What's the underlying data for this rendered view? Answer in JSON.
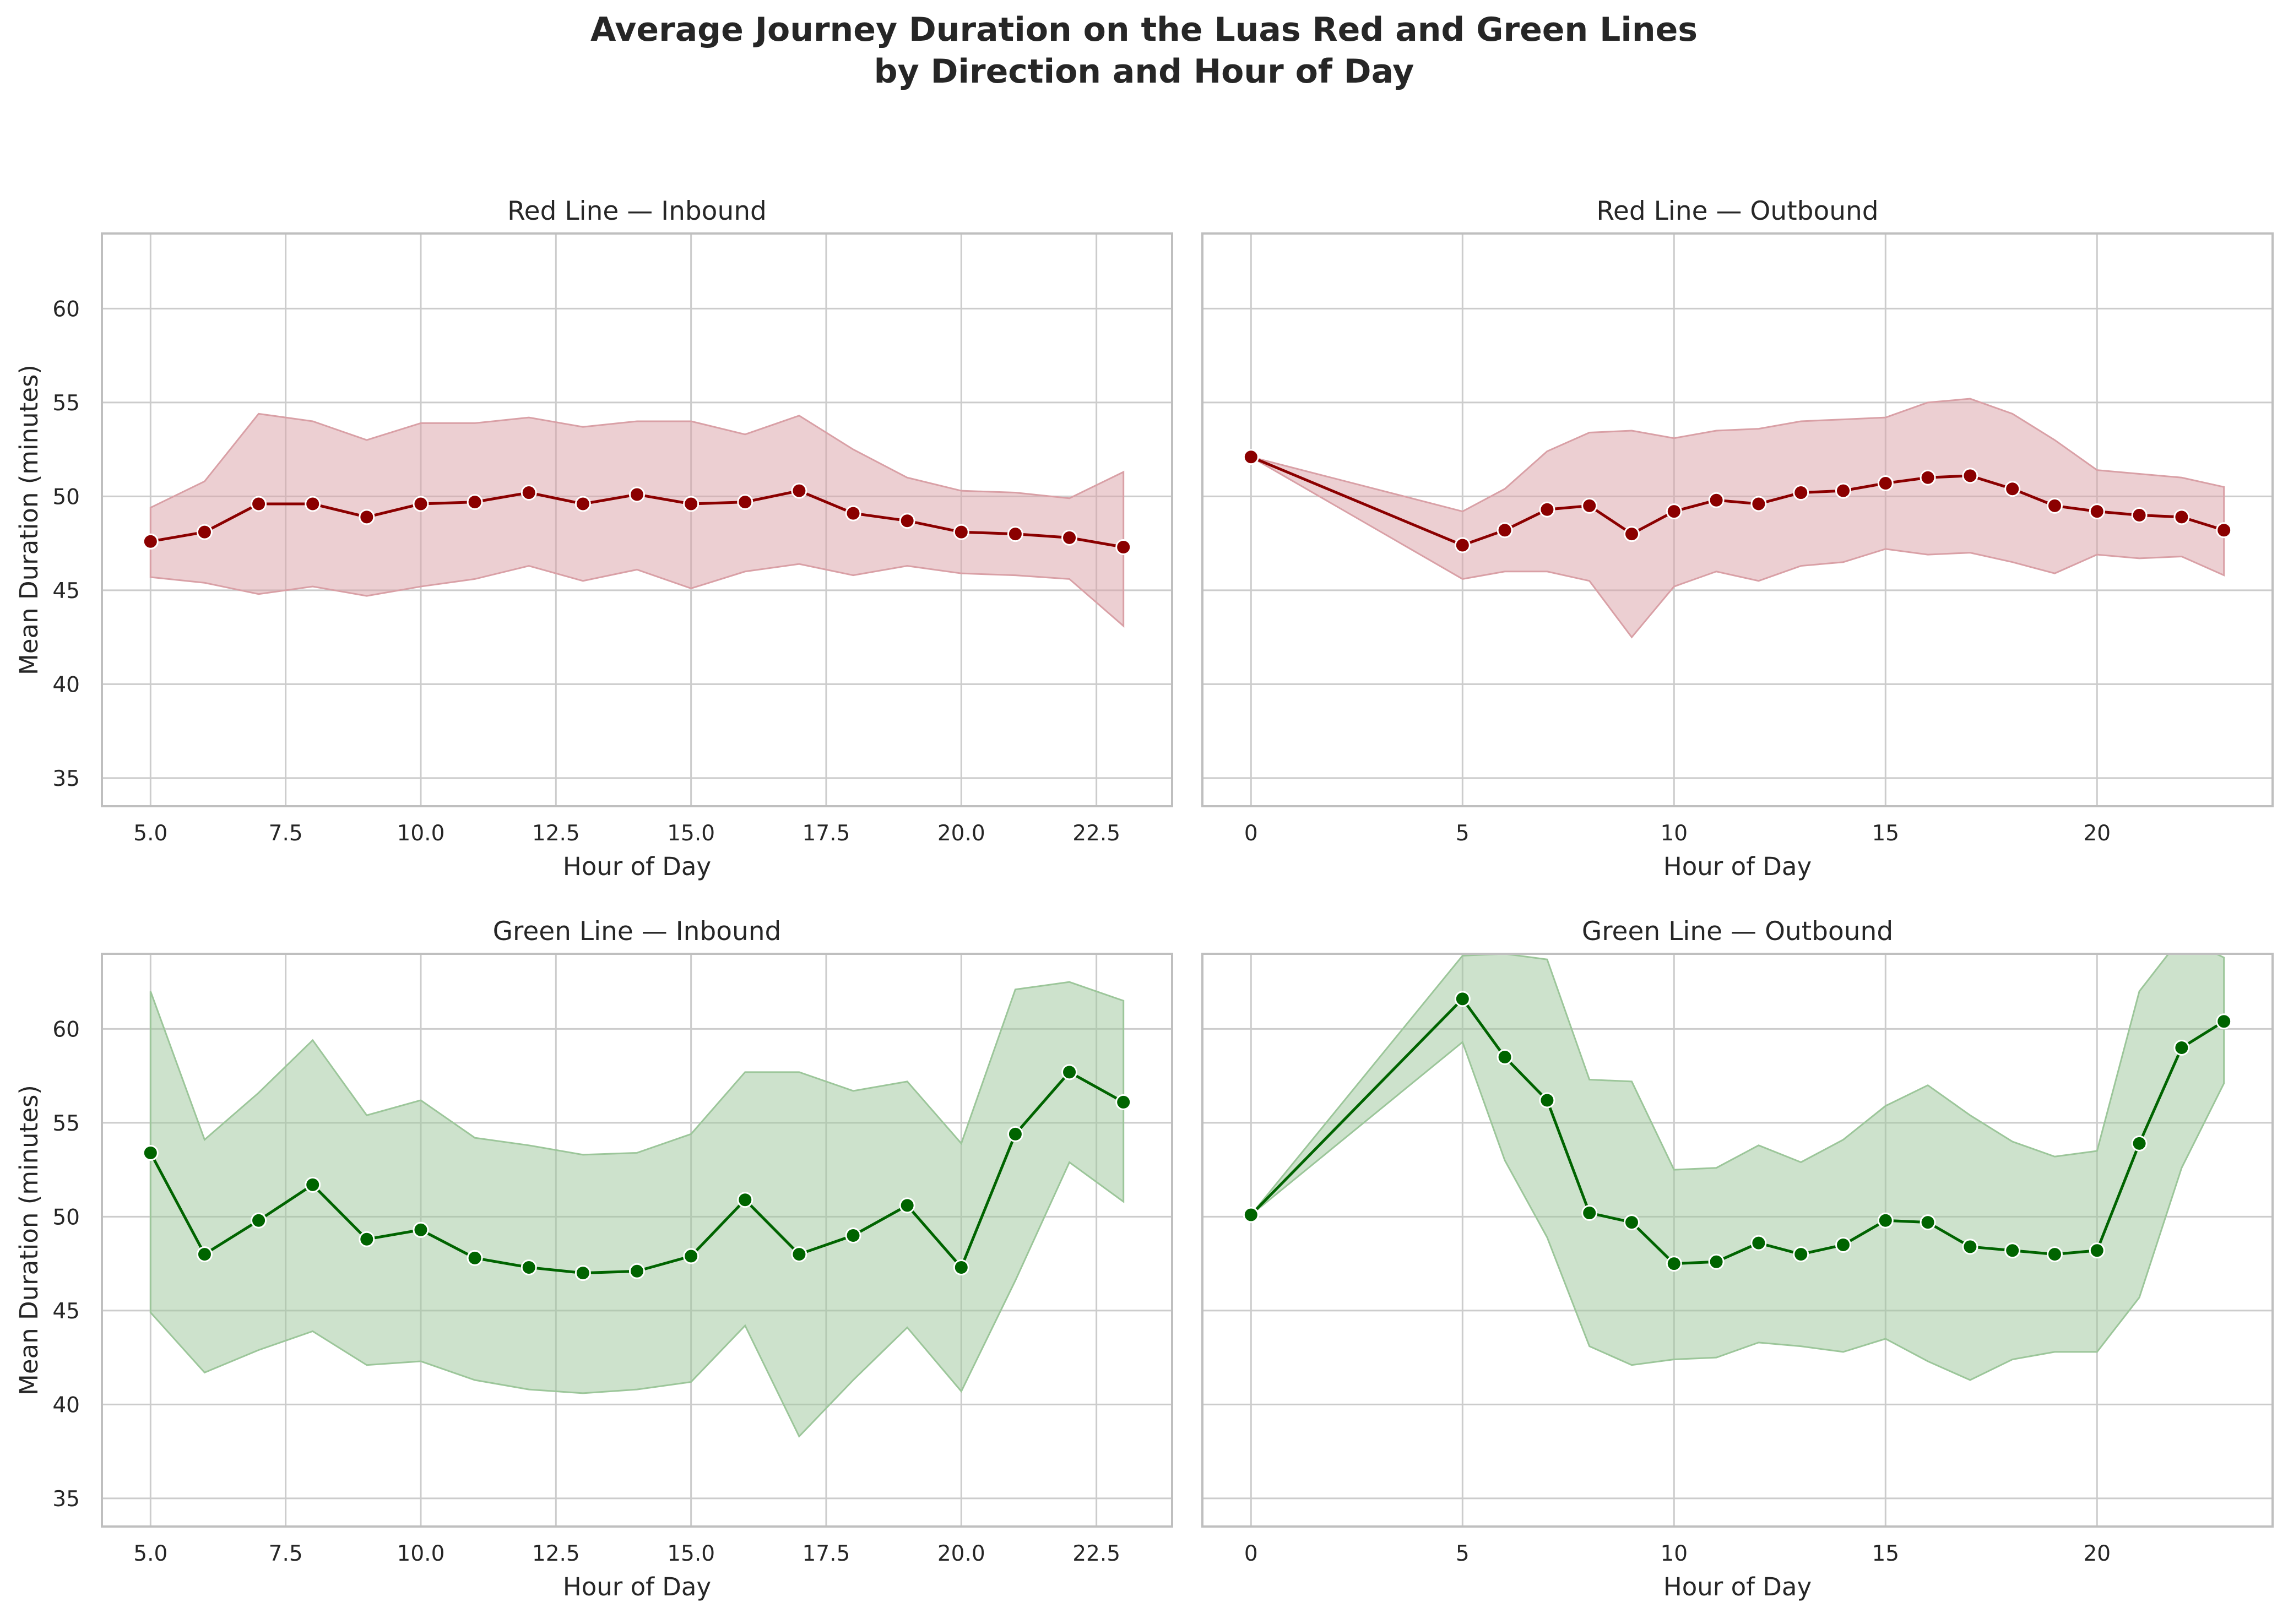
{
  "figure": {
    "title_line1": "Average Journey Duration on the Luas Red and Green Lines",
    "title_line2": "by Direction and Hour of Day"
  },
  "colors": {
    "red_line": "#8b0000",
    "red_band": "#d9a0a6",
    "green_line": "#006400",
    "green_band": "#9cc69a",
    "grid": "#cccccc",
    "frame": "#bfbfbf"
  },
  "chart_data": [
    {
      "type": "line",
      "title": "Red Line — Inbound",
      "xlabel": "Hour of Day",
      "ylabel": "Mean Duration (minutes)",
      "color": "#8b0000",
      "xlim": [
        4.1,
        23.9
      ],
      "ylim": [
        33.5,
        64
      ],
      "xticks": [
        5,
        7.5,
        10,
        12.5,
        15,
        17.5,
        20,
        22.5
      ],
      "xticklabels": [
        "5.0",
        "7.5",
        "10.0",
        "12.5",
        "15.0",
        "17.5",
        "20.0",
        "22.5"
      ],
      "yticks": [
        35,
        40,
        45,
        50,
        55,
        60
      ],
      "grid": true,
      "series": [
        {
          "x": [
            5,
            6,
            7,
            8,
            9,
            10,
            11,
            12,
            13,
            14,
            15,
            16,
            17,
            18,
            19,
            20,
            21,
            22,
            23
          ],
          "y": [
            47.6,
            48.1,
            49.6,
            49.6,
            48.9,
            49.6,
            49.7,
            50.2,
            49.6,
            50.1,
            49.6,
            49.7,
            50.3,
            49.1,
            48.7,
            48.1,
            48.0,
            47.8,
            47.3
          ],
          "lower": [
            45.7,
            45.4,
            44.8,
            45.2,
            44.7,
            45.2,
            45.6,
            46.3,
            45.5,
            46.1,
            45.1,
            46.0,
            46.4,
            45.8,
            46.3,
            45.9,
            45.8,
            45.6,
            43.1
          ],
          "upper": [
            49.4,
            50.8,
            54.4,
            54.0,
            53.0,
            53.9,
            53.9,
            54.2,
            53.7,
            54.0,
            54.0,
            53.3,
            54.3,
            52.5,
            51.0,
            50.3,
            50.2,
            49.9,
            51.3
          ]
        }
      ]
    },
    {
      "type": "line",
      "title": "Red Line — Outbound",
      "xlabel": "Hour of Day",
      "ylabel": "",
      "color": "#8b0000",
      "xlim": [
        -1.15,
        24.15
      ],
      "ylim": [
        33.5,
        64
      ],
      "xticks": [
        0,
        5,
        10,
        15,
        20
      ],
      "xticklabels": [
        "0",
        "5",
        "10",
        "15",
        "20"
      ],
      "yticks": [
        35,
        40,
        45,
        50,
        55,
        60
      ],
      "grid": true,
      "series": [
        {
          "x": [
            0,
            5,
            6,
            7,
            8,
            9,
            10,
            11,
            12,
            13,
            14,
            15,
            16,
            17,
            18,
            19,
            20,
            21,
            22,
            23
          ],
          "y": [
            52.1,
            47.4,
            48.2,
            49.3,
            49.5,
            48.0,
            49.2,
            49.8,
            49.6,
            50.2,
            50.3,
            50.7,
            51.0,
            51.1,
            50.4,
            49.5,
            49.2,
            49.0,
            48.9,
            48.2
          ],
          "lower": [
            52.1,
            45.6,
            46.0,
            46.0,
            45.5,
            42.5,
            45.2,
            46.0,
            45.5,
            46.3,
            46.5,
            47.2,
            46.9,
            47.0,
            46.5,
            45.9,
            46.9,
            46.7,
            46.8,
            45.8
          ],
          "upper": [
            52.1,
            49.2,
            50.4,
            52.4,
            53.4,
            53.5,
            53.1,
            53.5,
            53.6,
            54.0,
            54.1,
            54.2,
            55.0,
            55.2,
            54.4,
            53.0,
            51.4,
            51.2,
            51.0,
            50.5
          ]
        }
      ]
    },
    {
      "type": "line",
      "title": "Green Line — Inbound",
      "xlabel": "Hour of Day",
      "ylabel": "Mean Duration (minutes)",
      "color": "#006400",
      "xlim": [
        4.1,
        23.9
      ],
      "ylim": [
        33.5,
        64
      ],
      "xticks": [
        5,
        7.5,
        10,
        12.5,
        15,
        17.5,
        20,
        22.5
      ],
      "xticklabels": [
        "5.0",
        "7.5",
        "10.0",
        "12.5",
        "15.0",
        "17.5",
        "20.0",
        "22.5"
      ],
      "yticks": [
        35,
        40,
        45,
        50,
        55,
        60
      ],
      "grid": true,
      "series": [
        {
          "x": [
            5,
            6,
            7,
            8,
            9,
            10,
            11,
            12,
            13,
            14,
            15,
            16,
            17,
            18,
            19,
            20,
            21,
            22,
            23
          ],
          "y": [
            53.4,
            48.0,
            49.8,
            51.7,
            48.8,
            49.3,
            47.8,
            47.3,
            47.0,
            47.1,
            47.9,
            50.9,
            48.0,
            49.0,
            50.6,
            47.3,
            54.4,
            57.7,
            56.1
          ],
          "lower": [
            44.9,
            41.7,
            42.9,
            43.9,
            42.1,
            42.3,
            41.3,
            40.8,
            40.6,
            40.8,
            41.2,
            44.2,
            38.3,
            41.3,
            44.1,
            40.7,
            46.6,
            52.9,
            50.8
          ],
          "upper": [
            62.0,
            54.1,
            56.6,
            59.4,
            55.4,
            56.2,
            54.2,
            53.8,
            53.3,
            53.4,
            54.4,
            57.7,
            57.7,
            56.7,
            57.2,
            53.9,
            62.1,
            62.5,
            61.5
          ]
        }
      ]
    },
    {
      "type": "line",
      "title": "Green Line — Outbound",
      "xlabel": "Hour of Day",
      "ylabel": "",
      "color": "#006400",
      "xlim": [
        -1.15,
        24.15
      ],
      "ylim": [
        33.5,
        64
      ],
      "xticks": [
        0,
        5,
        10,
        15,
        20
      ],
      "xticklabels": [
        "0",
        "5",
        "10",
        "15",
        "20"
      ],
      "yticks": [
        35,
        40,
        45,
        50,
        55,
        60
      ],
      "grid": true,
      "series": [
        {
          "x": [
            0,
            5,
            6,
            7,
            8,
            9,
            10,
            11,
            12,
            13,
            14,
            15,
            16,
            17,
            18,
            19,
            20,
            21,
            22,
            23
          ],
          "y": [
            50.1,
            61.6,
            58.5,
            56.2,
            50.2,
            49.7,
            47.5,
            47.6,
            48.6,
            48.0,
            48.5,
            49.8,
            49.7,
            48.4,
            48.2,
            48.0,
            48.2,
            53.9,
            59.0,
            60.4
          ],
          "lower": [
            50.1,
            59.3,
            53.0,
            48.9,
            43.1,
            42.1,
            42.4,
            42.5,
            43.3,
            43.1,
            42.8,
            43.5,
            42.3,
            41.3,
            42.4,
            42.8,
            42.8,
            45.7,
            52.6,
            57.1
          ],
          "upper": [
            50.1,
            63.9,
            64.0,
            63.7,
            57.3,
            57.2,
            52.5,
            52.6,
            53.8,
            52.9,
            54.1,
            55.9,
            57.0,
            55.4,
            54.0,
            53.2,
            53.5,
            62.0,
            64.9,
            63.8
          ]
        }
      ]
    }
  ]
}
